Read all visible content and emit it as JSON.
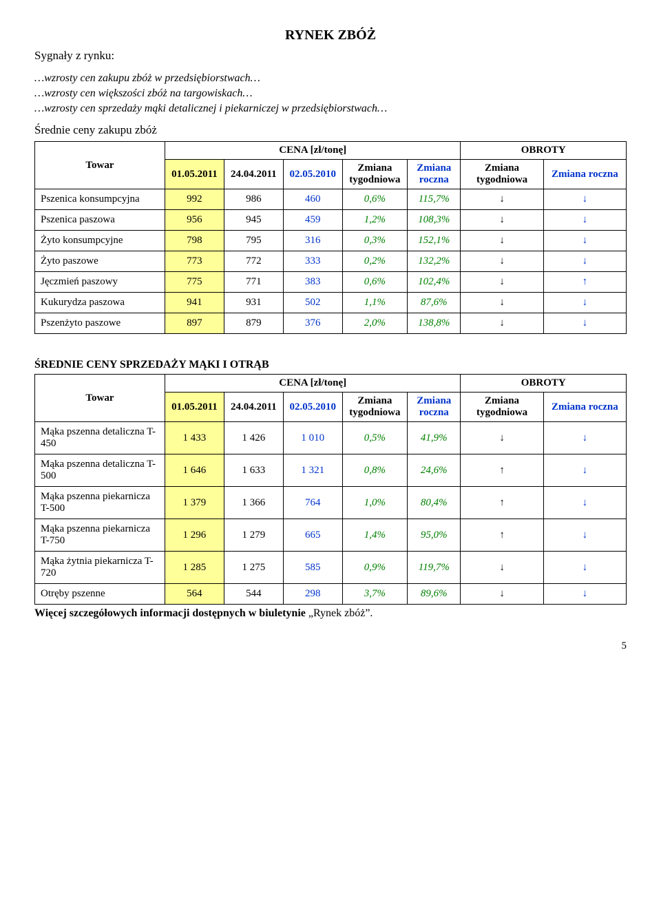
{
  "title": "RYNEK ZBÓŻ",
  "signals_heading": "Sygnały z rynku:",
  "signals": [
    "…wzrosty cen zakupu zbóż w przedsiębiorstwach…",
    "…wzrosty cen większości zbóż na targowiskach…",
    "…wzrosty cen sprzedaży mąki detalicznej i piekarniczej w przedsiębiorstwach…"
  ],
  "table1_heading": "Średnie ceny zakupu zbóż",
  "table2_heading": "ŚREDNIE CENY SPRZEDAŻY MĄKI I OTRĄB",
  "headers": {
    "towar": "Towar",
    "cena": "CENA [zł/tonę]",
    "obroty": "OBROTY",
    "d1": "01.05.2011",
    "d2": "24.04.2011",
    "d3": "02.05.2010",
    "zt": "Zmiana tygodniowa",
    "zr": "Zmiana roczna",
    "ot": "Zmiana tygodniowa",
    "or": "Zmiana roczna"
  },
  "t1": [
    {
      "name": "Pszenica konsumpcyjna",
      "d1": "992",
      "d2": "986",
      "d3": "460",
      "zt": "0,6%",
      "zr": "115,7%",
      "ot": "↓",
      "or": "↓"
    },
    {
      "name": "Pszenica paszowa",
      "d1": "956",
      "d2": "945",
      "d3": "459",
      "zt": "1,2%",
      "zr": "108,3%",
      "ot": "↓",
      "or": "↓"
    },
    {
      "name": "Żyto konsumpcyjne",
      "d1": "798",
      "d2": "795",
      "d3": "316",
      "zt": "0,3%",
      "zr": "152,1%",
      "ot": "↓",
      "or": "↓"
    },
    {
      "name": "Żyto paszowe",
      "d1": "773",
      "d2": "772",
      "d3": "333",
      "zt": "0,2%",
      "zr": "132,2%",
      "ot": "↓",
      "or": "↓"
    },
    {
      "name": "Jęczmień paszowy",
      "d1": "775",
      "d2": "771",
      "d3": "383",
      "zt": "0,6%",
      "zr": "102,4%",
      "ot": "↓",
      "or": "↑"
    },
    {
      "name": "Kukurydza paszowa",
      "d1": "941",
      "d2": "931",
      "d3": "502",
      "zt": "1,1%",
      "zr": "87,6%",
      "ot": "↓",
      "or": "↓"
    },
    {
      "name": "Pszenżyto paszowe",
      "d1": "897",
      "d2": "879",
      "d3": "376",
      "zt": "2,0%",
      "zr": "138,8%",
      "ot": "↓",
      "or": "↓"
    }
  ],
  "t2": [
    {
      "name": "Mąka pszenna detaliczna T-450",
      "d1": "1 433",
      "d2": "1 426",
      "d3": "1 010",
      "zt": "0,5%",
      "zr": "41,9%",
      "ot": "↓",
      "or": "↓"
    },
    {
      "name": "Mąka pszenna detaliczna T-500",
      "d1": "1 646",
      "d2": "1 633",
      "d3": "1 321",
      "zt": "0,8%",
      "zr": "24,6%",
      "ot": "↑",
      "or": "↓"
    },
    {
      "name": "Mąka pszenna piekarnicza T-500",
      "d1": "1 379",
      "d2": "1 366",
      "d3": "764",
      "zt": "1,0%",
      "zr": "80,4%",
      "ot": "↑",
      "or": "↓"
    },
    {
      "name": "Mąka pszenna piekarnicza T-750",
      "d1": "1 296",
      "d2": "1 279",
      "d3": "665",
      "zt": "1,4%",
      "zr": "95,0%",
      "ot": "↑",
      "or": "↓"
    },
    {
      "name": "Mąka żytnia piekarnicza T-720",
      "d1": "1 285",
      "d2": "1 275",
      "d3": "585",
      "zt": "0,9%",
      "zr": "119,7%",
      "ot": "↓",
      "or": "↓"
    },
    {
      "name": "Otręby pszenne",
      "d1": "564",
      "d2": "544",
      "d3": "298",
      "zt": "3,7%",
      "zr": "89,6%",
      "ot": "↓",
      "or": "↓"
    }
  ],
  "footnote_prefix": "Więcej szczegółowych informacji dostępnych w biuletynie ",
  "footnote_quoted": "„Rynek zbóż”.",
  "page_number": "5"
}
